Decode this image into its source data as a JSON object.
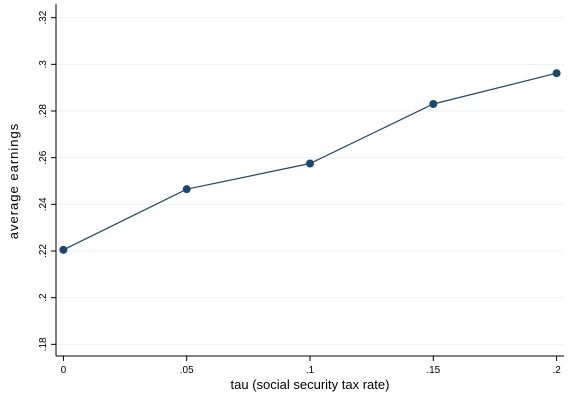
{
  "chart_data": {
    "type": "line",
    "xlabel": "tau (social security tax rate)",
    "ylabel": "average earnings",
    "x": [
      0,
      0.05,
      0.1,
      0.15,
      0.2
    ],
    "series": [
      {
        "values": [
          0.2205,
          0.2465,
          0.2575,
          0.283,
          0.2962
        ]
      }
    ],
    "xticks": [
      {
        "value": 0,
        "label": "0"
      },
      {
        "value": 0.05,
        "label": ".05"
      },
      {
        "value": 0.1,
        "label": ".1"
      },
      {
        "value": 0.15,
        "label": ".15"
      },
      {
        "value": 0.2,
        "label": ".2"
      }
    ],
    "yticks": [
      {
        "value": 0.18,
        "label": ".18"
      },
      {
        "value": 0.2,
        "label": ".2"
      },
      {
        "value": 0.22,
        "label": ".22"
      },
      {
        "value": 0.24,
        "label": ".24"
      },
      {
        "value": 0.26,
        "label": ".26"
      },
      {
        "value": 0.28,
        "label": ".28"
      },
      {
        "value": 0.3,
        "label": ".3"
      },
      {
        "value": 0.32,
        "label": ".32"
      }
    ],
    "xlim": [
      -0.003,
      0.203
    ],
    "ylim": [
      0.175,
      0.325
    ],
    "grid": "horizontal",
    "colors": {
      "line": "#1a476f",
      "marker": "#1a476f",
      "grid": "#eaf2f3",
      "axis": "#000000"
    }
  }
}
